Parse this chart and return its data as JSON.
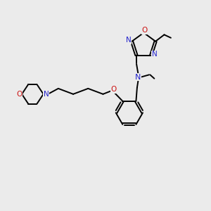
{
  "bg_color": "#ebebeb",
  "bond_color": "#000000",
  "N_color": "#2222cc",
  "O_color": "#cc1111",
  "figsize": [
    3.0,
    3.0
  ],
  "dpi": 100,
  "xlim": [
    0,
    10
  ],
  "ylim": [
    0,
    10
  ]
}
